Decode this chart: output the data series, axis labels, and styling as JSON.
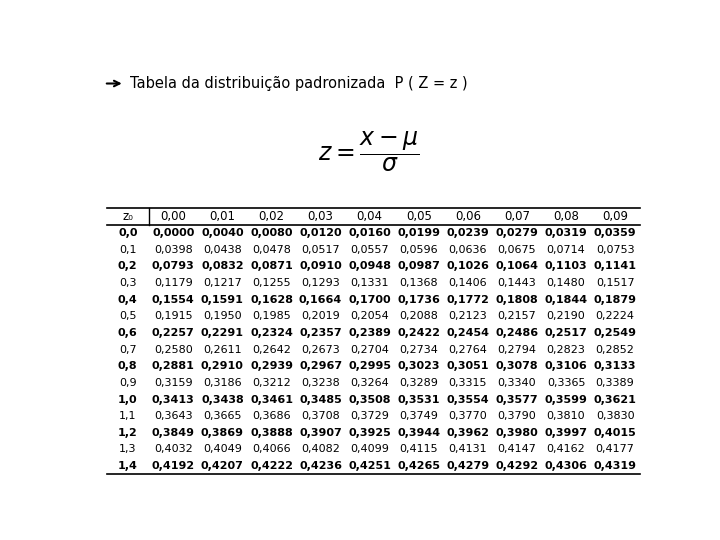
{
  "title": "Tabela da distribuição padronizada  P ( Z = z )",
  "header": [
    "z₀",
    "0,00",
    "0,01",
    "0,02",
    "0,03",
    "0,04",
    "0,05",
    "0,06",
    "0,07",
    "0,08",
    "0,09"
  ],
  "rows": [
    [
      "0,0",
      "0,0000",
      "0,0040",
      "0,0080",
      "0,0120",
      "0,0160",
      "0,0199",
      "0,0239",
      "0,0279",
      "0,0319",
      "0,0359"
    ],
    [
      "0,1",
      "0,0398",
      "0,0438",
      "0,0478",
      "0,0517",
      "0,0557",
      "0,0596",
      "0,0636",
      "0,0675",
      "0,0714",
      "0,0753"
    ],
    [
      "0,2",
      "0,0793",
      "0,0832",
      "0,0871",
      "0,0910",
      "0,0948",
      "0,0987",
      "0,1026",
      "0,1064",
      "0,1103",
      "0,1141"
    ],
    [
      "0,3",
      "0,1179",
      "0,1217",
      "0,1255",
      "0,1293",
      "0,1331",
      "0,1368",
      "0,1406",
      "0,1443",
      "0,1480",
      "0,1517"
    ],
    [
      "0,4",
      "0,1554",
      "0,1591",
      "0,1628",
      "0,1664",
      "0,1700",
      "0,1736",
      "0,1772",
      "0,1808",
      "0,1844",
      "0,1879"
    ],
    [
      "0,5",
      "0,1915",
      "0,1950",
      "0,1985",
      "0,2019",
      "0,2054",
      "0,2088",
      "0,2123",
      "0,2157",
      "0,2190",
      "0,2224"
    ],
    [
      "0,6",
      "0,2257",
      "0,2291",
      "0,2324",
      "0,2357",
      "0,2389",
      "0,2422",
      "0,2454",
      "0,2486",
      "0,2517",
      "0,2549"
    ],
    [
      "0,7",
      "0,2580",
      "0,2611",
      "0,2642",
      "0,2673",
      "0,2704",
      "0,2734",
      "0,2764",
      "0,2794",
      "0,2823",
      "0,2852"
    ],
    [
      "0,8",
      "0,2881",
      "0,2910",
      "0,2939",
      "0,2967",
      "0,2995",
      "0,3023",
      "0,3051",
      "0,3078",
      "0,3106",
      "0,3133"
    ],
    [
      "0,9",
      "0,3159",
      "0,3186",
      "0,3212",
      "0,3238",
      "0,3264",
      "0,3289",
      "0,3315",
      "0,3340",
      "0,3365",
      "0,3389"
    ],
    [
      "1,0",
      "0,3413",
      "0,3438",
      "0,3461",
      "0,3485",
      "0,3508",
      "0,3531",
      "0,3554",
      "0,3577",
      "0,3599",
      "0,3621"
    ],
    [
      "1,1",
      "0,3643",
      "0,3665",
      "0,3686",
      "0,3708",
      "0,3729",
      "0,3749",
      "0,3770",
      "0,3790",
      "0,3810",
      "0,3830"
    ],
    [
      "1,2",
      "0,3849",
      "0,3869",
      "0,3888",
      "0,3907",
      "0,3925",
      "0,3944",
      "0,3962",
      "0,3980",
      "0,3997",
      "0,4015"
    ],
    [
      "1,3",
      "0,4032",
      "0,4049",
      "0,4066",
      "0,4082",
      "0,4099",
      "0,4115",
      "0,4131",
      "0,4147",
      "0,4162",
      "0,4177"
    ],
    [
      "1,4",
      "0,4192",
      "0,4207",
      "0,4222",
      "0,4236",
      "0,4251",
      "0,4265",
      "0,4279",
      "0,4292",
      "0,4306",
      "0,4319"
    ]
  ],
  "bold_rows": [
    0,
    2,
    4,
    6,
    8,
    10,
    12,
    14
  ],
  "bg_color": "#ffffff",
  "text_color": "#000000"
}
